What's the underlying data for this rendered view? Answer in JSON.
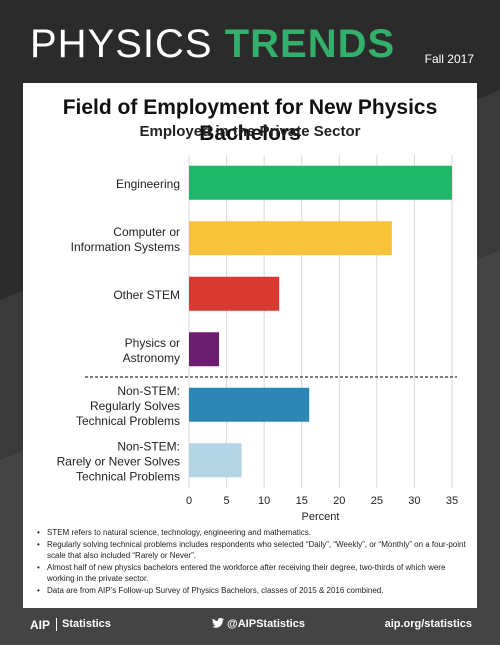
{
  "header": {
    "brand_light": "PHYSICS ",
    "brand_bold": "TRENDS",
    "season": "Fall 2017"
  },
  "colors": {
    "background": "#2b2b2b",
    "brand_green": "#33b06b"
  },
  "chart_data": {
    "type": "bar",
    "orientation": "horizontal",
    "title": "Field of Employment for New Physics Bachelors",
    "subtitle": "Employed in the Private Sector",
    "xlabel": "Percent",
    "xlim": [
      0,
      35
    ],
    "xticks": [
      0,
      5,
      10,
      15,
      20,
      25,
      30,
      35
    ],
    "grid": true,
    "categories": [
      [
        "Engineering"
      ],
      [
        "Computer or",
        "Information Systems"
      ],
      [
        "Other STEM"
      ],
      [
        "Physics or",
        "Astronomy"
      ],
      [
        "Non-STEM:",
        "Regularly Solves",
        "Technical Problems"
      ],
      [
        "Non-STEM:",
        "Rarely or Never Solves",
        "Technical Problems"
      ]
    ],
    "values": [
      35,
      27,
      12,
      4,
      16,
      7
    ],
    "colors": [
      "#1db86a",
      "#f8c338",
      "#d83a32",
      "#6b1e6e",
      "#2e86b6",
      "#b3d4e2"
    ],
    "divider_after_index": 3
  },
  "notes": [
    "STEM refers to natural science, technology, engineering and mathematics.",
    "Regularly solving technical problems includes respondents who selected “Daily”, “Weekly”, or “Monthly” on a four-point scale that also included “Rarely or Never”.",
    "Almost half of new physics bachelors entered the workforce after receiving their degree, two-thirds of which were working in the private sector.",
    "Data are from AIP’s Follow-up Survey of Physics Bachelors, classes of 2015 & 2016 combined."
  ],
  "footer": {
    "logo": "AIP",
    "statistics": "Statistics",
    "twitter": "@AIPStatistics",
    "url": "aip.org/statistics"
  }
}
